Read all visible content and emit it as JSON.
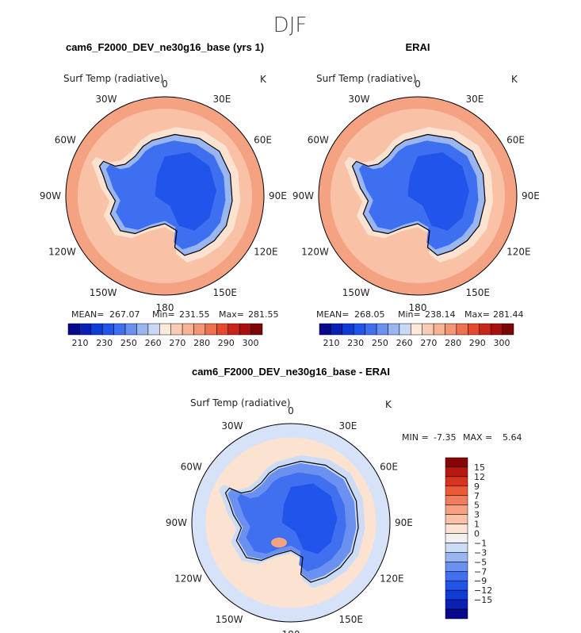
{
  "season_title": "DJF",
  "colors": {
    "abs": [
      "#08088a",
      "#0a1fb4",
      "#0d3cd6",
      "#2054ea",
      "#4070f0",
      "#6a90f0",
      "#9ab6f0",
      "#c8d8f6",
      "#fce8dc",
      "#f9cdb5",
      "#f7b495",
      "#f49676",
      "#ee7150",
      "#e44a2c",
      "#c8261a",
      "#a8100e",
      "#7a0606"
    ],
    "diff": [
      "#08088a",
      "#0a1fb4",
      "#0d3cd6",
      "#2054ea",
      "#4070f0",
      "#6a90f0",
      "#9ab6f0",
      "#cddcf6",
      "#f1f1f1",
      "#fce2d0",
      "#f9c2a6",
      "#f5a283",
      "#f07e5c",
      "#e95a35",
      "#d8341d",
      "#b81810",
      "#860606"
    ],
    "ocean_warm": "#f5a283",
    "ocean_mid": "#f9c2a6",
    "ocean_cool": "#fce2d0",
    "land_ice": "#3d6ff0",
    "land_core": "#2054ea",
    "land_edge": "#9ab6f0"
  },
  "panels": [
    {
      "title": "cam6_F2000_DEV_ne30g16_base (yrs 1)",
      "variable": "Surf Temp (radiative)",
      "units": "K",
      "mean_label": "MEAN=",
      "mean": "267.07",
      "min_label": "Min=",
      "min": "231.55",
      "max_label": "Max=",
      "max": "281.55"
    },
    {
      "title": "ERAI",
      "variable": "Surf Temp (radiative)",
      "units": "K",
      "mean_label": "MEAN=",
      "mean": "268.05",
      "min_label": "Min=",
      "min": "238.14",
      "max_label": "Max=",
      "max": "281.44"
    },
    {
      "title": "cam6_F2000_DEV_ne30g16_base - ERAI",
      "variable": "Surf Temp (radiative)",
      "units": "K",
      "min_label": "MIN =",
      "min": "-7.35",
      "max_label": "MAX =",
      "max": "5.64"
    }
  ],
  "longitude_labels": [
    "0",
    "30E",
    "60E",
    "90E",
    "120E",
    "150E",
    "180",
    "150W",
    "120W",
    "90W",
    "60W",
    "30W"
  ],
  "chart_data": [
    {
      "type": "heatmap",
      "projection": "south polar stereographic",
      "title": "cam6_F2000_DEV_ne30g16_base (yrs 1)",
      "variable": "Surf Temp (radiative)",
      "units": "K",
      "mean": 267.07,
      "min": 231.55,
      "max": 281.55,
      "colorbar_ticks": [
        "210",
        "230",
        "250",
        "260",
        "270",
        "280",
        "290",
        "300"
      ],
      "colorbar_range": [
        210,
        300
      ]
    },
    {
      "type": "heatmap",
      "projection": "south polar stereographic",
      "title": "ERAI",
      "variable": "Surf Temp (radiative)",
      "units": "K",
      "mean": 268.05,
      "min": 238.14,
      "max": 281.44,
      "colorbar_ticks": [
        "210",
        "230",
        "250",
        "260",
        "270",
        "280",
        "290",
        "300"
      ],
      "colorbar_range": [
        210,
        300
      ]
    },
    {
      "type": "heatmap",
      "projection": "south polar stereographic",
      "title": "cam6_F2000_DEV_ne30g16_base - ERAI",
      "variable": "Surf Temp (radiative)",
      "units": "K",
      "min": -7.35,
      "max": 5.64,
      "colorbar_ticks": [
        "15",
        "12",
        "9",
        "7",
        "5",
        "3",
        "1",
        "0",
        "−1",
        "−3",
        "−5",
        "−7",
        "−9",
        "−12",
        "−15"
      ],
      "colorbar_range": [
        -15,
        15
      ]
    }
  ]
}
